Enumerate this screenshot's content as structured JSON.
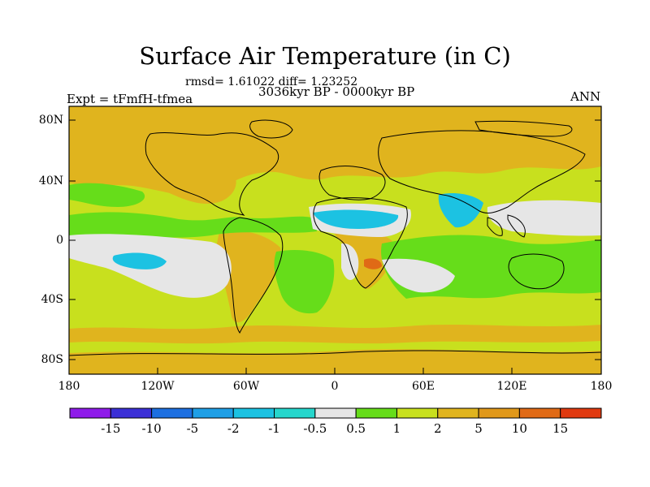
{
  "title": "Surface Air Temperature (in C)",
  "stats": "rmsd= 1.61022 diff= 1.23252",
  "period": "3036kyr BP - 0000kyr BP",
  "experiment": "Expt = tFmfH-tfmea",
  "season": "ANN",
  "lat_labels": [
    "80N",
    "40N",
    "0",
    "40S",
    "80S"
  ],
  "lon_labels": [
    "180",
    "120W",
    "60W",
    "0",
    "60E",
    "120E",
    "180"
  ],
  "colorbar": {
    "labels": [
      "-15",
      "-10",
      "-5",
      "-2",
      "-1",
      "-0.5",
      "0.5",
      "1",
      "2",
      "5",
      "10",
      "15"
    ],
    "colors": [
      "#8f1bea",
      "#3b2fd6",
      "#1d6fe0",
      "#1f9fe6",
      "#1cc2e2",
      "#26d6cc",
      "#e6e6e6",
      "#66dd1a",
      "#c8e01e",
      "#e0b41e",
      "#e0981a",
      "#e06a16",
      "#e03a10"
    ]
  },
  "field_colors": {
    "background": "#c8e01e",
    "warm": "#e0b41e",
    "neutral": "#e6e6e6",
    "mild": "#66dd1a",
    "cool": "#1cc2e2",
    "coolest": "#26d6cc",
    "hot": "#e06a16"
  }
}
